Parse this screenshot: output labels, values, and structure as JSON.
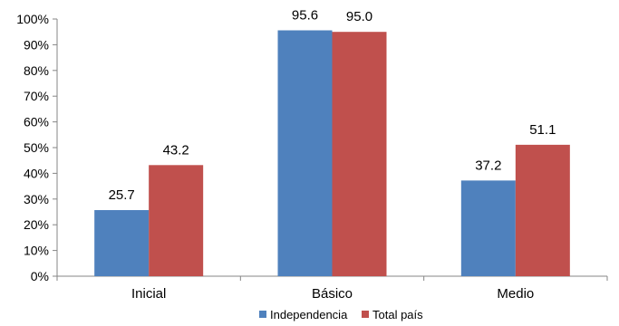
{
  "chart_data": {
    "type": "bar",
    "categories": [
      "Inicial",
      "Básico",
      "Medio"
    ],
    "series": [
      {
        "name": "Independencia",
        "values": [
          25.7,
          95.6,
          37.2
        ],
        "labels": [
          "25.7",
          "95.6",
          "37.2"
        ],
        "color": "#4f81bd"
      },
      {
        "name": "Total país",
        "values": [
          43.2,
          95.0,
          51.1
        ],
        "labels": [
          "43.2",
          "95.0",
          "51.1"
        ],
        "color": "#c0504d"
      }
    ],
    "y_ticks": [
      "0%",
      "10%",
      "20%",
      "30%",
      "40%",
      "50%",
      "60%",
      "70%",
      "80%",
      "90%",
      "100%"
    ],
    "ylim": [
      0,
      100
    ],
    "grid": false,
    "legend_position": "bottom"
  }
}
